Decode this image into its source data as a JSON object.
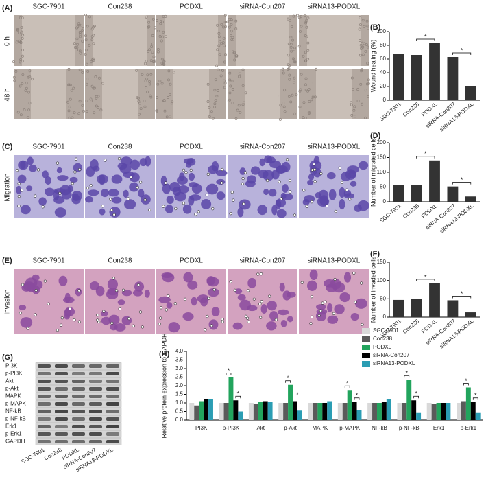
{
  "figure": {
    "panel_labels": {
      "A": "(A)",
      "C": "(C)",
      "E": "(E)",
      "G": "(G)"
    },
    "groups": [
      "SGC-7901",
      "Con238",
      "PODXL",
      "siRNA-Con207",
      "siRNA13-PODXL"
    ],
    "time_labels": [
      "0 h",
      "48 h"
    ],
    "migration_label": "Migration",
    "invasion_label": "Invasion",
    "blot_proteins": [
      "PI3K",
      "p-PI3K",
      "Akt",
      "p-Akt",
      "MAPK",
      "p-MAPK",
      "NF-kB",
      "p-NF-kB",
      "Erk1",
      "p-Erk1",
      "GAPDH"
    ]
  },
  "chart_data": [
    {
      "type": "bar",
      "panel_label": "(B)",
      "y_label": "Wound healing (%)",
      "categories": [
        "SGC-7901",
        "Con238",
        "PODXL",
        "siRNA-Con207",
        "siRNA13-PODXL"
      ],
      "values": [
        68,
        66,
        83,
        63,
        21
      ],
      "color": "#333333",
      "ylim": [
        0,
        100
      ],
      "yticks": [
        0,
        20,
        40,
        60,
        80,
        100
      ],
      "annotations": [
        {
          "text": "*",
          "from": "Con238",
          "to": "PODXL"
        },
        {
          "text": "*",
          "from": "siRNA-Con207",
          "to": "siRNA13-PODXL"
        }
      ]
    },
    {
      "type": "bar",
      "panel_label": "(D)",
      "y_label": "Number of migrated cells",
      "categories": [
        "SGC-7901",
        "Con238",
        "PODXL",
        "siRNA-Con207",
        "siRNA13-PODXL"
      ],
      "values": [
        58,
        58,
        140,
        52,
        18
      ],
      "color": "#333333",
      "ylim": [
        0,
        200
      ],
      "yticks": [
        0,
        50,
        100,
        150,
        200
      ],
      "annotations": [
        {
          "text": "*",
          "from": "Con238",
          "to": "PODXL"
        },
        {
          "text": "*",
          "from": "siRNA-Con207",
          "to": "siRNA13-PODXL"
        }
      ]
    },
    {
      "type": "bar",
      "panel_label": "(F)",
      "y_label": "Number of invaded cells",
      "categories": [
        "SGC-7901",
        "Con238",
        "PODXL",
        "siRNA-Con207",
        "siRNA13-PODXL"
      ],
      "values": [
        47,
        50,
        92,
        46,
        13
      ],
      "color": "#333333",
      "ylim": [
        0,
        150
      ],
      "yticks": [
        0,
        50,
        100,
        150
      ],
      "annotations": [
        {
          "text": "*",
          "from": "Con238",
          "to": "PODXL"
        },
        {
          "text": "*",
          "from": "siRNA-Con207",
          "to": "siRNA13-PODXL"
        }
      ]
    },
    {
      "type": "bar",
      "panel_label": "(H)",
      "y_label": "Relative protein expression to GAPDH",
      "categories": [
        "PI3K",
        "p-PI3K",
        "Akt",
        "p-Akt",
        "MAPK",
        "p-MAPK",
        "NF-kB",
        "p-NF-kB",
        "Erk1",
        "p-Erk1"
      ],
      "series": [
        {
          "name": "SGC-7901",
          "color": "#d9d9d9",
          "values": [
            1.0,
            1.0,
            1.0,
            1.0,
            1.0,
            1.0,
            1.0,
            1.0,
            1.0,
            1.0
          ]
        },
        {
          "name": "Con238",
          "color": "#5a5a5a",
          "values": [
            0.85,
            1.0,
            0.95,
            1.0,
            1.0,
            1.0,
            1.0,
            1.0,
            0.95,
            1.1
          ]
        },
        {
          "name": "PODXL",
          "color": "#22a45d",
          "values": [
            1.1,
            2.5,
            1.05,
            2.05,
            1.0,
            1.75,
            1.0,
            2.35,
            1.0,
            1.9
          ]
        },
        {
          "name": "siRNA-Con207",
          "color": "#000000",
          "values": [
            1.2,
            1.15,
            1.1,
            1.1,
            1.0,
            1.05,
            1.05,
            1.15,
            1.0,
            1.05
          ]
        },
        {
          "name": "siRNA13-PODXL",
          "color": "#2b9db3",
          "values": [
            1.2,
            0.5,
            1.05,
            0.55,
            1.1,
            0.6,
            1.2,
            0.45,
            1.0,
            0.45
          ]
        }
      ],
      "ylim": [
        0,
        4
      ],
      "yticks": [
        {
          "value": 0,
          "label": "0.0"
        },
        0.5,
        {
          "value": 1,
          "label": "1.0"
        },
        1.5,
        {
          "value": 2,
          "label": "2.0"
        },
        2.5,
        {
          "value": 3,
          "label": "3.0"
        },
        3.5,
        {
          "value": 4,
          "label": "4.0"
        }
      ],
      "legend": "upper-left",
      "annotations": [
        {
          "text": "*",
          "category": "p-PI3K",
          "from": "Con238",
          "to": "PODXL"
        },
        {
          "text": "*",
          "category": "p-PI3K",
          "from": "siRNA-Con207",
          "to": "siRNA13-PODXL"
        },
        {
          "text": "*",
          "category": "p-Akt",
          "from": "Con238",
          "to": "PODXL"
        },
        {
          "text": "*",
          "category": "p-Akt",
          "from": "siRNA-Con207",
          "to": "siRNA13-PODXL"
        },
        {
          "text": "*",
          "category": "p-MAPK",
          "from": "Con238",
          "to": "PODXL"
        },
        {
          "text": "*",
          "category": "p-MAPK",
          "from": "siRNA-Con207",
          "to": "siRNA13-PODXL"
        },
        {
          "text": "*",
          "category": "p-NF-kB",
          "from": "Con238",
          "to": "PODXL"
        },
        {
          "text": "*",
          "category": "p-NF-kB",
          "from": "siRNA-Con207",
          "to": "siRNA13-PODXL"
        },
        {
          "text": "*",
          "category": "p-Erk1",
          "from": "Con238",
          "to": "PODXL"
        },
        {
          "text": "*",
          "category": "p-Erk1",
          "from": "siRNA-Con207",
          "to": "siRNA13-PODXL"
        }
      ]
    }
  ]
}
